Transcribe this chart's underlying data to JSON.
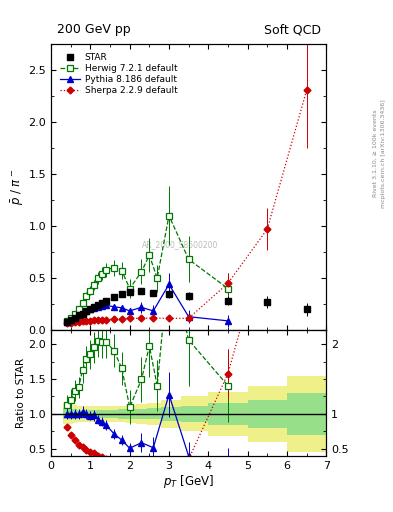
{
  "title_left": "200 GeV pp",
  "title_right": "Soft QCD",
  "ylabel_main": "$\\bar{p}$ / $\\pi^-$",
  "ylabel_ratio": "Ratio to STAR",
  "xlabel": "$p_T$ [GeV]",
  "right_label_top": "Rivet 3.1.10, ≥ 100k events",
  "right_label_bot": "mcplots.cern.ch [arXiv:1306.3436]",
  "watermark": "AR_2000_S8500200",
  "star_x": [
    0.4,
    0.5,
    0.6,
    0.7,
    0.8,
    0.9,
    1.0,
    1.1,
    1.2,
    1.3,
    1.4,
    1.6,
    1.8,
    2.0,
    2.3,
    2.6,
    3.0,
    3.5,
    4.5,
    5.5,
    6.5
  ],
  "star_y": [
    0.08,
    0.1,
    0.12,
    0.145,
    0.16,
    0.185,
    0.205,
    0.22,
    0.245,
    0.265,
    0.285,
    0.315,
    0.345,
    0.365,
    0.375,
    0.36,
    0.345,
    0.33,
    0.285,
    0.27,
    0.2
  ],
  "star_yerr": [
    0.006,
    0.007,
    0.008,
    0.009,
    0.01,
    0.011,
    0.012,
    0.013,
    0.015,
    0.016,
    0.018,
    0.02,
    0.023,
    0.026,
    0.028,
    0.03,
    0.035,
    0.04,
    0.045,
    0.055,
    0.06
  ],
  "herwig_x": [
    0.4,
    0.5,
    0.6,
    0.7,
    0.8,
    0.9,
    1.0,
    1.1,
    1.2,
    1.3,
    1.4,
    1.6,
    1.8,
    2.0,
    2.3,
    2.5,
    2.7,
    3.0,
    3.5,
    4.5
  ],
  "herwig_y": [
    0.09,
    0.12,
    0.16,
    0.2,
    0.26,
    0.33,
    0.38,
    0.43,
    0.5,
    0.54,
    0.58,
    0.6,
    0.57,
    0.4,
    0.56,
    0.72,
    0.5,
    1.1,
    0.68,
    0.4
  ],
  "herwig_yerr": [
    0.012,
    0.015,
    0.018,
    0.022,
    0.028,
    0.036,
    0.042,
    0.048,
    0.056,
    0.062,
    0.068,
    0.075,
    0.08,
    0.09,
    0.12,
    0.16,
    0.13,
    0.28,
    0.22,
    0.15
  ],
  "pythia_x": [
    0.4,
    0.5,
    0.6,
    0.7,
    0.8,
    0.9,
    1.0,
    1.1,
    1.2,
    1.3,
    1.4,
    1.6,
    1.8,
    2.0,
    2.3,
    2.6,
    3.0,
    3.5,
    4.5
  ],
  "pythia_y": [
    0.08,
    0.1,
    0.12,
    0.145,
    0.165,
    0.185,
    0.2,
    0.215,
    0.225,
    0.235,
    0.24,
    0.225,
    0.215,
    0.185,
    0.22,
    0.185,
    0.44,
    0.13,
    0.09
  ],
  "pythia_yerr": [
    0.006,
    0.007,
    0.009,
    0.01,
    0.012,
    0.013,
    0.014,
    0.016,
    0.017,
    0.018,
    0.02,
    0.022,
    0.025,
    0.03,
    0.05,
    0.055,
    0.11,
    0.065,
    0.055
  ],
  "sherpa_x": [
    0.4,
    0.5,
    0.6,
    0.7,
    0.8,
    0.9,
    1.0,
    1.1,
    1.2,
    1.3,
    1.4,
    1.6,
    1.8,
    2.0,
    2.3,
    2.6,
    3.0,
    3.5,
    4.5,
    5.5,
    6.5
  ],
  "sherpa_y": [
    0.065,
    0.07,
    0.075,
    0.08,
    0.085,
    0.09,
    0.093,
    0.096,
    0.098,
    0.1,
    0.102,
    0.107,
    0.112,
    0.113,
    0.115,
    0.117,
    0.113,
    0.115,
    0.45,
    0.97,
    2.3
  ],
  "sherpa_yerr": [
    0.003,
    0.003,
    0.004,
    0.004,
    0.005,
    0.005,
    0.005,
    0.006,
    0.006,
    0.007,
    0.007,
    0.008,
    0.009,
    0.01,
    0.011,
    0.013,
    0.014,
    0.016,
    0.1,
    0.2,
    0.55
  ],
  "star_color": "#000000",
  "herwig_color": "#007700",
  "pythia_color": "#0000cc",
  "sherpa_color": "#cc0000",
  "green_band": "#88dd88",
  "yellow_band": "#eeee77",
  "ylim_main": [
    0.0,
    2.75
  ],
  "ylim_ratio": [
    0.4,
    2.2
  ],
  "xlim": [
    0.0,
    7.0
  ],
  "star_bin_edges": [
    0.3,
    0.45,
    0.55,
    0.65,
    0.75,
    0.85,
    0.95,
    1.05,
    1.15,
    1.25,
    1.35,
    1.5,
    1.7,
    1.9,
    2.15,
    2.45,
    2.8,
    3.3,
    4.0,
    5.0,
    6.0,
    7.0
  ],
  "star_rel_err_inner": [
    0.08,
    0.07,
    0.07,
    0.06,
    0.06,
    0.06,
    0.06,
    0.06,
    0.06,
    0.06,
    0.06,
    0.06,
    0.07,
    0.07,
    0.07,
    0.08,
    0.1,
    0.12,
    0.16,
    0.2,
    0.3
  ],
  "star_rel_err_outer": [
    0.15,
    0.14,
    0.13,
    0.12,
    0.12,
    0.11,
    0.11,
    0.11,
    0.11,
    0.11,
    0.11,
    0.12,
    0.12,
    0.13,
    0.14,
    0.16,
    0.2,
    0.25,
    0.32,
    0.4,
    0.55
  ]
}
